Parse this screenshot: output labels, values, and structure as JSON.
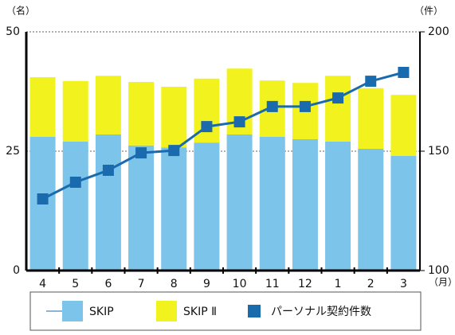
{
  "chart_data": {
    "type": "bar_line",
    "y_label": "（名）",
    "y2_label": "（件）",
    "x_unit": "（月）",
    "categories": [
      "4",
      "5",
      "6",
      "7",
      "8",
      "9",
      "10",
      "11",
      "12",
      "1",
      "2",
      "3"
    ],
    "series": [
      {
        "name": "SKIP",
        "color": "#7cc4ea",
        "values": [
          28,
          27,
          28.5,
          26.2,
          25.8,
          26.8,
          28.5,
          28,
          27.5,
          27,
          25.5,
          24
        ]
      },
      {
        "name": "SKIP Ⅱ",
        "color": "#f2f21e",
        "values": [
          12.5,
          12.7,
          12.3,
          13.3,
          12.7,
          13.4,
          13.8,
          11.8,
          11.8,
          13.8,
          12.7,
          12.8
        ]
      },
      {
        "name": "パーソナル契約件数",
        "color": "#1a6aae",
        "axis": "y2",
        "values": [
          130,
          137,
          142,
          149.3,
          150.3,
          160.3,
          162.3,
          168.7,
          168.7,
          172.3,
          179.3,
          183
        ]
      }
    ],
    "ylim": [
      0,
      50
    ],
    "yticks": [
      0,
      25,
      50
    ],
    "y2lim": [
      100,
      200
    ],
    "y2ticks": [
      100,
      150,
      200
    ],
    "grid": true
  }
}
